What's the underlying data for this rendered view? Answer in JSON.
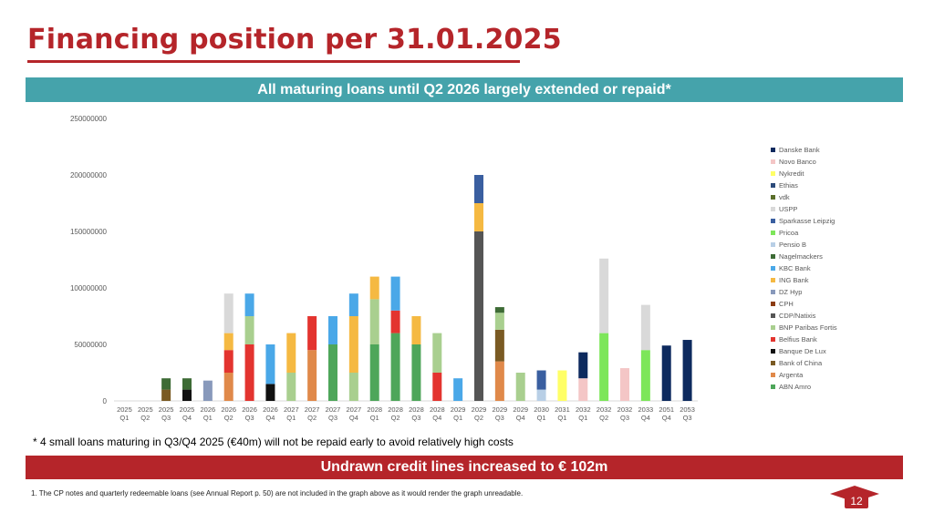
{
  "header": {
    "title": "Financing position per 31.01.2025",
    "subtitle_banner": "All maturing loans until Q2 2026 largely extended or repaid*"
  },
  "notes": {
    "star_note": "* 4 small loans maturing in Q3/Q4 2025 (€40m) will not be repaid early to avoid relatively high costs",
    "credit_banner": "Undrawn credit lines increased to € 102m",
    "footnote_1": "1. The CP notes and quarterly redeemable loans (see Annual Report p. 50) are not included in the graph above as it would render the graph unreadable.",
    "page_number": "12"
  },
  "colors": {
    "brand_red": "#b5252a",
    "banner_teal": "#45a3ab"
  },
  "chart_data": {
    "type": "bar",
    "stacked": true,
    "ylim": [
      0,
      250000000
    ],
    "yticks": [
      0,
      50000000,
      100000000,
      150000000,
      200000000,
      250000000
    ],
    "grid": false,
    "legend_position": "right",
    "categories": [
      [
        "2025",
        "Q1"
      ],
      [
        "2025",
        "Q2"
      ],
      [
        "2025",
        "Q3"
      ],
      [
        "2025",
        "Q4"
      ],
      [
        "2026",
        "Q1"
      ],
      [
        "2026",
        "Q2"
      ],
      [
        "2026",
        "Q3"
      ],
      [
        "2026",
        "Q4"
      ],
      [
        "2027",
        "Q1"
      ],
      [
        "2027",
        "Q2"
      ],
      [
        "2027",
        "Q3"
      ],
      [
        "2027",
        "Q4"
      ],
      [
        "2028",
        "Q1"
      ],
      [
        "2028",
        "Q2"
      ],
      [
        "2028",
        "Q3"
      ],
      [
        "2028",
        "Q4"
      ],
      [
        "2029",
        "Q1"
      ],
      [
        "2029",
        "Q2"
      ],
      [
        "2029",
        "Q3"
      ],
      [
        "2029",
        "Q4"
      ],
      [
        "2030",
        "Q1"
      ],
      [
        "2031",
        "Q1"
      ],
      [
        "2032",
        "Q1"
      ],
      [
        "2032",
        "Q2"
      ],
      [
        "2032",
        "Q3"
      ],
      [
        "2033",
        "Q4"
      ],
      [
        "2051",
        "Q4"
      ],
      [
        "2053",
        "Q3"
      ]
    ],
    "series": [
      {
        "name": "ABN Amro",
        "color": "#4ea65a",
        "values": [
          0,
          0,
          0,
          0,
          0,
          0,
          0,
          0,
          0,
          0,
          50000000,
          0,
          50000000,
          60000000,
          50000000,
          0,
          0,
          0,
          0,
          0,
          0,
          0,
          0,
          0,
          0,
          0,
          0,
          0
        ]
      },
      {
        "name": "Argenta",
        "color": "#e0894a",
        "values": [
          0,
          0,
          0,
          0,
          0,
          25000000,
          0,
          0,
          0,
          45000000,
          0,
          0,
          0,
          0,
          0,
          0,
          0,
          0,
          35000000,
          0,
          0,
          0,
          0,
          0,
          0,
          0,
          0,
          0
        ]
      },
      {
        "name": "Bank of China",
        "color": "#7a5a23",
        "values": [
          0,
          0,
          10000000,
          0,
          0,
          0,
          0,
          0,
          0,
          0,
          0,
          0,
          0,
          0,
          0,
          0,
          0,
          0,
          28000000,
          0,
          0,
          0,
          0,
          0,
          0,
          0,
          0,
          0
        ]
      },
      {
        "name": "Banque De Lux",
        "color": "#111111",
        "values": [
          0,
          0,
          0,
          10000000,
          0,
          0,
          0,
          15000000,
          0,
          0,
          0,
          0,
          0,
          0,
          0,
          0,
          0,
          0,
          0,
          0,
          0,
          0,
          0,
          0,
          0,
          0,
          0,
          0
        ]
      },
      {
        "name": "Belfius Bank",
        "color": "#e3342f",
        "values": [
          0,
          0,
          0,
          0,
          0,
          20000000,
          50000000,
          0,
          0,
          30000000,
          0,
          0,
          0,
          20000000,
          0,
          25000000,
          0,
          0,
          0,
          0,
          0,
          0,
          0,
          0,
          0,
          0,
          0,
          0
        ]
      },
      {
        "name": "BNP Paribas Fortis",
        "color": "#a9cf8f",
        "values": [
          0,
          0,
          0,
          0,
          0,
          0,
          25000000,
          0,
          25000000,
          0,
          0,
          25000000,
          40000000,
          0,
          0,
          35000000,
          0,
          0,
          15000000,
          25000000,
          0,
          0,
          0,
          0,
          0,
          0,
          0,
          0
        ]
      },
      {
        "name": "CDP/Natixis",
        "color": "#555555",
        "values": [
          0,
          0,
          0,
          0,
          0,
          0,
          0,
          0,
          0,
          0,
          0,
          0,
          0,
          0,
          0,
          0,
          0,
          150000000,
          0,
          0,
          0,
          0,
          0,
          0,
          0,
          0,
          0,
          0
        ]
      },
      {
        "name": "CPH",
        "color": "#8b3b12",
        "values": [
          0,
          0,
          0,
          0,
          0,
          0,
          0,
          0,
          0,
          0,
          0,
          0,
          0,
          0,
          0,
          0,
          0,
          0,
          0,
          0,
          0,
          0,
          0,
          0,
          0,
          0,
          0,
          0
        ]
      },
      {
        "name": "DZ Hyp",
        "color": "#8899bb",
        "values": [
          0,
          0,
          0,
          0,
          18000000,
          0,
          0,
          0,
          0,
          0,
          0,
          0,
          0,
          0,
          0,
          0,
          0,
          0,
          0,
          0,
          0,
          0,
          0,
          0,
          0,
          0,
          0,
          0
        ]
      },
      {
        "name": "ING Bank",
        "color": "#f5b942",
        "values": [
          0,
          0,
          0,
          0,
          0,
          15000000,
          0,
          0,
          35000000,
          0,
          0,
          50000000,
          20000000,
          0,
          25000000,
          0,
          0,
          25000000,
          0,
          0,
          0,
          0,
          0,
          0,
          0,
          0,
          0,
          0
        ]
      },
      {
        "name": "KBC Bank",
        "color": "#4aa8e8",
        "values": [
          0,
          0,
          0,
          0,
          0,
          0,
          20000000,
          35000000,
          0,
          0,
          25000000,
          20000000,
          0,
          30000000,
          0,
          0,
          20000000,
          0,
          0,
          0,
          0,
          0,
          0,
          0,
          0,
          0,
          0,
          0
        ]
      },
      {
        "name": "Nagelmackers",
        "color": "#3d6b35",
        "values": [
          0,
          0,
          10000000,
          10000000,
          0,
          0,
          0,
          0,
          0,
          0,
          0,
          0,
          0,
          0,
          0,
          0,
          0,
          0,
          5000000,
          0,
          0,
          0,
          0,
          0,
          0,
          0,
          0,
          0
        ]
      },
      {
        "name": "Pensio B",
        "color": "#b8cfe6",
        "values": [
          0,
          0,
          0,
          0,
          0,
          0,
          0,
          0,
          0,
          0,
          0,
          0,
          0,
          0,
          0,
          0,
          0,
          0,
          0,
          0,
          10000000,
          0,
          0,
          0,
          0,
          0,
          0,
          0
        ]
      },
      {
        "name": "Pricoa",
        "color": "#7de65a",
        "values": [
          0,
          0,
          0,
          0,
          0,
          0,
          0,
          0,
          0,
          0,
          0,
          0,
          0,
          0,
          0,
          0,
          0,
          0,
          0,
          0,
          0,
          0,
          0,
          60000000,
          0,
          45000000,
          0,
          0
        ]
      },
      {
        "name": "Sparkasse Leipzig",
        "color": "#3a5fa0",
        "values": [
          0,
          0,
          0,
          0,
          0,
          0,
          0,
          0,
          0,
          0,
          0,
          0,
          0,
          0,
          0,
          0,
          0,
          25000000,
          0,
          0,
          17000000,
          0,
          0,
          0,
          0,
          0,
          0,
          0
        ]
      },
      {
        "name": "USPP",
        "color": "#d9d9d9",
        "values": [
          0,
          0,
          0,
          0,
          0,
          35000000,
          0,
          0,
          0,
          0,
          0,
          0,
          0,
          0,
          0,
          0,
          0,
          0,
          0,
          0,
          0,
          0,
          0,
          66000000,
          0,
          40000000,
          0,
          0
        ]
      },
      {
        "name": "vdk",
        "color": "#5a6e2a",
        "values": [
          0,
          0,
          0,
          0,
          0,
          0,
          0,
          0,
          0,
          0,
          0,
          0,
          0,
          0,
          0,
          0,
          0,
          0,
          0,
          0,
          0,
          0,
          0,
          0,
          0,
          0,
          0,
          0
        ]
      },
      {
        "name": "Ethias",
        "color": "#2c4a7a",
        "values": [
          0,
          0,
          0,
          0,
          0,
          0,
          0,
          0,
          0,
          0,
          0,
          0,
          0,
          0,
          0,
          0,
          0,
          0,
          0,
          0,
          0,
          0,
          0,
          0,
          0,
          0,
          0,
          0
        ]
      },
      {
        "name": "Nykredit",
        "color": "#ffff66",
        "values": [
          0,
          0,
          0,
          0,
          0,
          0,
          0,
          0,
          0,
          0,
          0,
          0,
          0,
          0,
          0,
          0,
          0,
          0,
          0,
          0,
          0,
          27000000,
          0,
          0,
          0,
          0,
          0,
          0
        ]
      },
      {
        "name": "Novo Banco",
        "color": "#f4c6c6",
        "values": [
          0,
          0,
          0,
          0,
          0,
          0,
          0,
          0,
          0,
          0,
          0,
          0,
          0,
          0,
          0,
          0,
          0,
          0,
          0,
          0,
          0,
          0,
          20000000,
          0,
          29000000,
          0,
          0,
          0
        ]
      },
      {
        "name": "Danske Bank",
        "color": "#0d2a5e",
        "values": [
          0,
          0,
          0,
          0,
          0,
          0,
          0,
          0,
          0,
          0,
          0,
          0,
          0,
          0,
          0,
          0,
          0,
          0,
          0,
          0,
          0,
          0,
          23000000,
          0,
          0,
          0,
          49000000,
          54000000
        ]
      }
    ]
  }
}
